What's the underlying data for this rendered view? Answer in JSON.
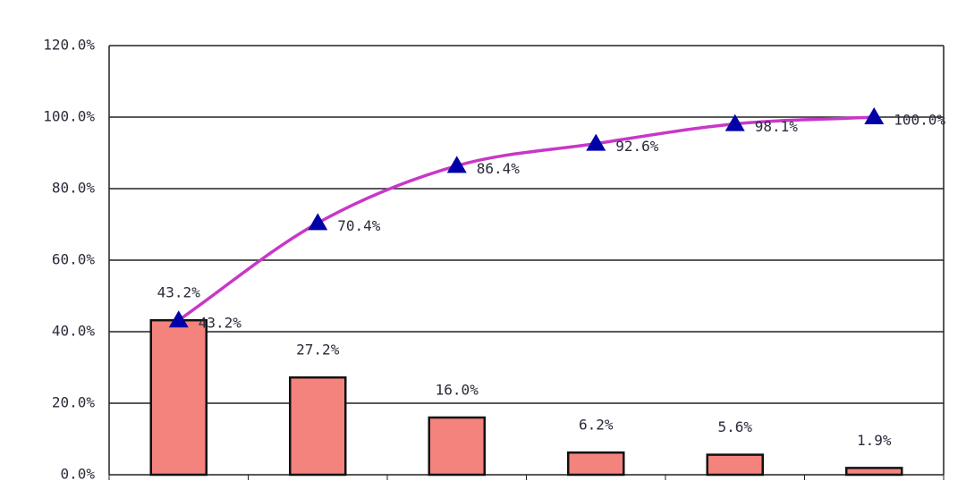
{
  "chart_data": {
    "type": "bar",
    "categories": [
      null,
      null,
      null,
      null,
      null,
      null
    ],
    "series": [
      {
        "type": "bar",
        "color": "#f4837d",
        "values": [
          43.2,
          27.2,
          16.0,
          6.2,
          5.6,
          1.9
        ],
        "value_labels": [
          "43.2%",
          "27.2%",
          "16.0%",
          "6.2%",
          "5.6%",
          "1.9%"
        ]
      },
      {
        "type": "line",
        "color": "#c837c8",
        "marker_color": "#0000a8",
        "values": [
          43.2,
          70.4,
          86.4,
          92.6,
          98.1,
          100.0
        ],
        "value_labels": [
          "43.2%",
          "70.4%",
          "86.4%",
          "92.6%",
          "98.1%",
          "100.0%"
        ]
      }
    ],
    "ylim": [
      0,
      120
    ],
    "yticks": [
      {
        "value": 0,
        "label": "0.0%"
      },
      {
        "value": 20,
        "label": "20.0%"
      },
      {
        "value": 40,
        "label": "40.0%"
      },
      {
        "value": 60,
        "label": "60.0%"
      },
      {
        "value": 80,
        "label": "80.0%"
      },
      {
        "value": 100,
        "label": "100.0%"
      },
      {
        "value": 120,
        "label": "120.0%"
      }
    ],
    "grid": true
  }
}
